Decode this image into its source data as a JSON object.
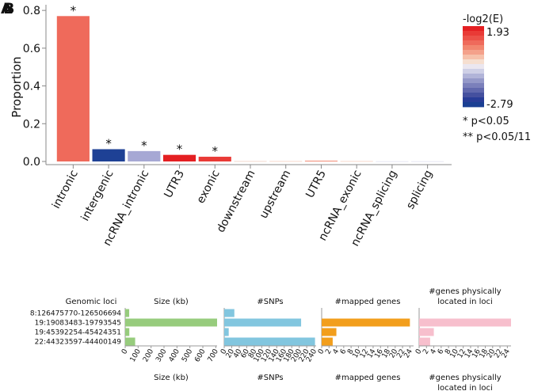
{
  "panel_labels": [
    "A",
    "B"
  ],
  "colorbar": {
    "title": "-log2(E)",
    "max_label": "1.93",
    "min_label": "-2.79",
    "colors": [
      "#e41f22",
      "#e93a36",
      "#ec5148",
      "#ef6a5b",
      "#f2866f",
      "#f4a18b",
      "#f6c1ab",
      "#f6dfd0",
      "#ebe7f0",
      "#cfd0e6",
      "#b1b4d8",
      "#9599c9",
      "#7b80bb",
      "#6168ad",
      "#45509f",
      "#283c97",
      "#1a3f93"
    ]
  },
  "significance_legend": [
    "* p<0.05",
    "** p<0.05/11"
  ],
  "chart_data": [
    {
      "type": "bar",
      "categories": [
        "intronic",
        "intergenic",
        "ncRNA_intronic",
        "UTR3",
        "exonic",
        "downstream",
        "upstream",
        "UTR5",
        "ncRNA_exonic",
        "ncRNA_splicing",
        "splicing"
      ],
      "values": [
        0.77,
        0.065,
        0.055,
        0.035,
        0.025,
        0.002,
        0.002,
        0.004,
        0.002,
        0.001,
        0.001
      ],
      "bar_colors": [
        "#ef6a5b",
        "#1e4195",
        "#a6a8d4",
        "#e41f22",
        "#e93a36",
        "#f2d0c2",
        "#f4cfc0",
        "#f2866f",
        "#f4cfc0",
        "#e0e0ee",
        "#e0e0ee"
      ],
      "stars": [
        "*",
        "*",
        "*",
        "*",
        "*",
        "",
        "",
        "",
        "",
        "",
        ""
      ],
      "ylabel": "Proportion",
      "ylim": [
        0,
        0.83
      ],
      "yticks": [
        0.0,
        0.2,
        0.4,
        0.6,
        0.8
      ],
      "ytick_labels": [
        "0.0",
        "0.2",
        "0.4",
        "0.6",
        "0.8"
      ]
    },
    {
      "type": "bar",
      "orientation": "horizontal",
      "row_header": "Genomic loci",
      "loci": [
        "8:126475770-126506694",
        "19:19083483-19793545",
        "19:45392254-45424351",
        "22:44323597-44400149"
      ],
      "panels": [
        {
          "title": "Size (kb)",
          "footer": "Size (kb)",
          "color": "#97cc7d",
          "values": [
            31,
            710,
            32,
            77
          ],
          "xlim": [
            0,
            710
          ],
          "ticks": [
            0,
            100,
            200,
            300,
            400,
            500,
            600,
            700
          ],
          "tick_labels": [
            "0",
            "100",
            "200",
            "300",
            "400",
            "500",
            "600",
            "700"
          ]
        },
        {
          "title": "#SNPs",
          "footer": "#SNPs",
          "color": "#82c6df",
          "values": [
            27,
            205,
            12,
            242
          ],
          "xlim": [
            0,
            245
          ],
          "ticks": [
            0,
            20,
            40,
            60,
            80,
            100,
            120,
            140,
            160,
            180,
            200,
            220,
            240
          ],
          "tick_labels": [
            "0",
            "20",
            "40",
            "60",
            "80",
            "100",
            "120",
            "140",
            "160",
            "180",
            "200",
            "220",
            "240"
          ]
        },
        {
          "title": "#mapped genes",
          "footer": "#mapped genes",
          "color": "#f29e1c",
          "values": [
            0,
            24,
            4,
            3
          ],
          "xlim": [
            0,
            25
          ],
          "ticks": [
            0,
            2,
            4,
            6,
            8,
            10,
            12,
            14,
            16,
            18,
            20,
            22,
            24
          ],
          "tick_labels": [
            "0",
            "2",
            "4",
            "6",
            "8",
            "10",
            "12",
            "14",
            "16",
            "18",
            "20",
            "22",
            "24"
          ]
        },
        {
          "title": "#genes physically\nlocated in loci",
          "footer": "#genes physically\nlocated in loci",
          "color": "#f7bfcd",
          "values": [
            0,
            25,
            4,
            3
          ],
          "xlim": [
            0,
            25
          ],
          "ticks": [
            0,
            2,
            4,
            6,
            8,
            10,
            12,
            14,
            16,
            18,
            20,
            22,
            24
          ],
          "tick_labels": [
            "0",
            "2",
            "4",
            "6",
            "8",
            "10",
            "12",
            "14",
            "16",
            "18",
            "20",
            "22",
            "24"
          ]
        }
      ]
    }
  ]
}
